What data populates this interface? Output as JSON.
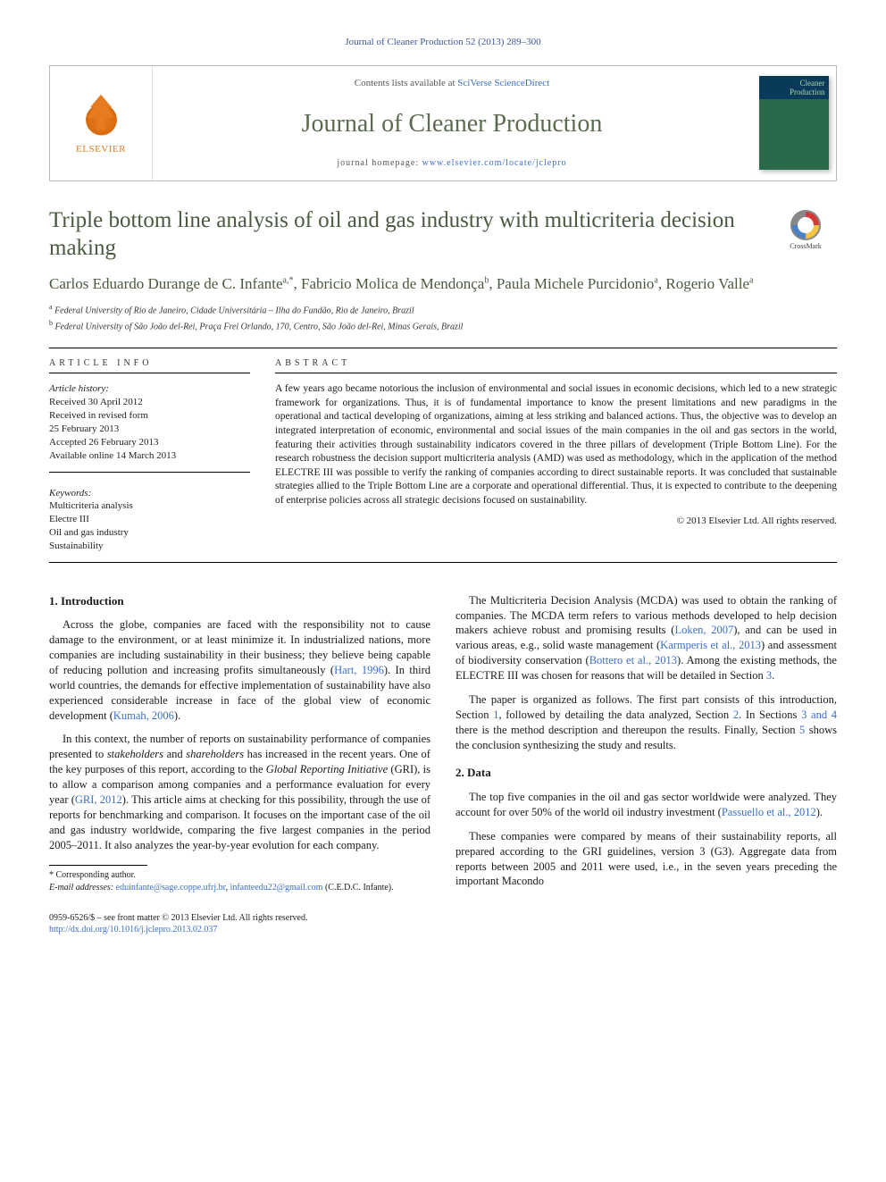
{
  "running_head": "Journal of Cleaner Production 52 (2013) 289–300",
  "masthead": {
    "publisher": "ELSEVIER",
    "contents_prefix": "Contents lists available at ",
    "contents_link": "SciVerse ScienceDirect",
    "journal": "Journal of Cleaner Production",
    "homepage_prefix": "journal homepage: ",
    "homepage_url": "www.elsevier.com/locate/jclepro",
    "cover_title": "Cleaner Production"
  },
  "crossmark_label": "CrossMark",
  "title": "Triple bottom line analysis of oil and gas industry with multicriteria decision making",
  "authors_html": "Carlos Eduardo Durange de C. Infante<sup>a,*</sup>, Fabricio Molica de Mendonça<sup>b</sup>, Paula Michele Purcidonio<sup>a</sup>, Rogerio Valle<sup>a</sup>",
  "affiliations": [
    {
      "sup": "a",
      "text": "Federal University of Rio de Janeiro, Cidade Universitária – Ilha do Fundão, Rio de Janeiro, Brazil"
    },
    {
      "sup": "b",
      "text": "Federal University of São João del-Rei, Praça Frei Orlando, 170, Centro, São João del-Rei, Minas Gerais, Brazil"
    }
  ],
  "info_head": "ARTICLE INFO",
  "abstract_head": "ABSTRACT",
  "history": {
    "head": "Article history:",
    "lines": [
      "Received 30 April 2012",
      "Received in revised form",
      "25 February 2013",
      "Accepted 26 February 2013",
      "Available online 14 March 2013"
    ]
  },
  "keywords": {
    "head": "Keywords:",
    "items": [
      "Multicriteria analysis",
      "Electre III",
      "Oil and gas industry",
      "Sustainability"
    ]
  },
  "abstract": "A few years ago became notorious the inclusion of environmental and social issues in economic decisions, which led to a new strategic framework for organizations. Thus, it is of fundamental importance to know the present limitations and new paradigms in the operational and tactical developing of organizations, aiming at less striking and balanced actions. Thus, the objective was to develop an integrated interpretation of economic, environmental and social issues of the main companies in the oil and gas sectors in the world, featuring their activities through sustainability indicators covered in the three pillars of development (Triple Bottom Line). For the research robustness the decision support multicriteria analysis (AMD) was used as methodology, which in the application of the method ELECTRE III was possible to verify the ranking of companies according to direct sustainable reports. It was concluded that sustainable strategies allied to the Triple Bottom Line are a corporate and operational differential. Thus, it is expected to contribute to the deepening of enterprise policies across all strategic decisions focused on sustainability.",
  "copyright": "© 2013 Elsevier Ltd. All rights reserved.",
  "sections": {
    "intro_head": "1. Introduction",
    "intro_p1_a": "Across the globe, companies are faced with the responsibility not to cause damage to the environment, or at least minimize it. In industrialized nations, more companies are including sustainability in their business; they believe being capable of reducing pollution and increasing profits simultaneously (",
    "intro_p1_ref1": "Hart, 1996",
    "intro_p1_b": "). In third world countries, the demands for effective implementation of sustainability have also experienced considerable increase in face of the global view of economic development (",
    "intro_p1_ref2": "Kumah, 2006",
    "intro_p1_c": ").",
    "intro_p2_a": "In this context, the number of reports on sustainability performance of companies presented to ",
    "intro_p2_em1": "stakeholders",
    "intro_p2_b": " and ",
    "intro_p2_em2": "shareholders",
    "intro_p2_c": " has increased in the recent years. One of the key purposes of this report, according to the ",
    "intro_p2_em3": "Global Reporting Initiative",
    "intro_p2_d": " (GRI), is to allow a comparison among companies and a performance evaluation for every year (",
    "intro_p2_ref1": "GRI, 2012",
    "intro_p2_e": "). This article aims at checking for this possibility, through the use of reports for benchmarking and comparison. It focuses on the important case of the oil and gas industry worldwide, comparing the five largest companies in the period 2005–2011. It also analyzes the year-by-year evolution for each company.",
    "intro_p3_a": "The Multicriteria Decision Analysis (MCDA) was used to obtain the ranking of companies. The MCDA term refers to various methods developed to help decision makers achieve robust and promising results (",
    "intro_p3_ref1": "Loken, 2007",
    "intro_p3_b": "), and can be used in various areas, e.g., solid waste management (",
    "intro_p3_ref2": "Karmperis et al., 2013",
    "intro_p3_c": ") and assessment of biodiversity conservation (",
    "intro_p3_ref3": "Bottero et al., 2013",
    "intro_p3_d": "). Among the existing methods, the ELECTRE III was chosen for reasons that will be detailed in Section ",
    "intro_p3_ref4": "3",
    "intro_p3_e": ".",
    "intro_p4_a": "The paper is organized as follows. The first part consists of this introduction, Section ",
    "intro_p4_ref1": "1",
    "intro_p4_b": ", followed by detailing the data analyzed, Section ",
    "intro_p4_ref2": "2",
    "intro_p4_c": ". In Sections ",
    "intro_p4_ref3": "3 and 4",
    "intro_p4_d": " there is the method description and thereupon the results. Finally, Section ",
    "intro_p4_ref4": "5",
    "intro_p4_e": " shows the conclusion synthesizing the study and results.",
    "data_head": "2. Data",
    "data_p1_a": "The top five companies in the oil and gas sector worldwide were analyzed. They account for over 50% of the world oil industry investment (",
    "data_p1_ref1": "Passuello et al., 2012",
    "data_p1_b": ").",
    "data_p2": "These companies were compared by means of their sustainability reports, all prepared according to the GRI guidelines, version 3 (G3). Aggregate data from reports between 2005 and 2011 were used, i.e., in the seven years preceding the important Macondo"
  },
  "footnote": {
    "corr": "* Corresponding author.",
    "email_label": "E-mail addresses:",
    "email1": "eduinfante@sage.coppe.ufrj.br",
    "sep": ", ",
    "email2": "infanteedu22@gmail.com",
    "tail": "(C.E.D.C. Infante)."
  },
  "footer": {
    "left_line1": "0959-6526/$ – see front matter © 2013 Elsevier Ltd. All rights reserved.",
    "left_doi": "http://dx.doi.org/10.1016/j.jclepro.2013.02.037"
  }
}
